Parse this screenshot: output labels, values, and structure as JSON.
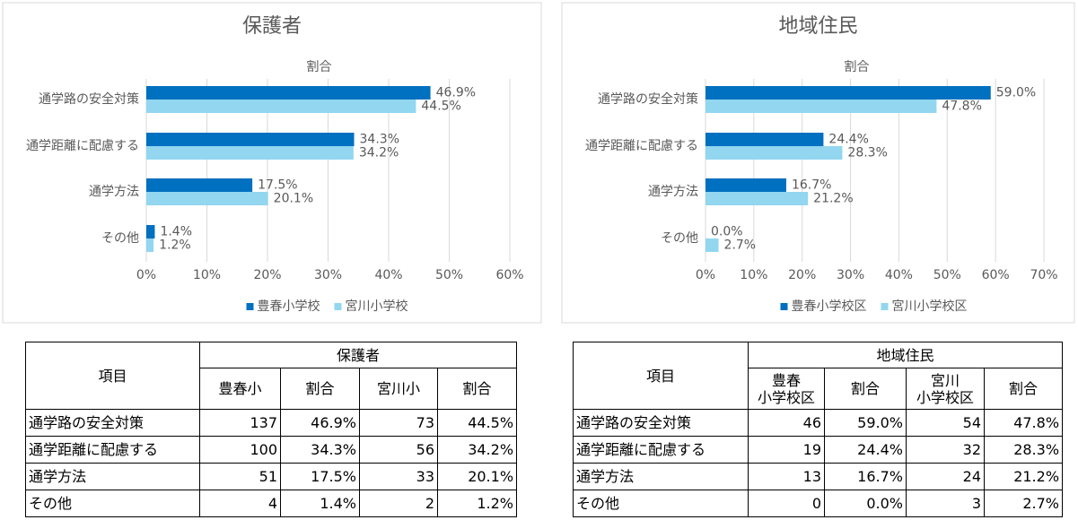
{
  "chart_data": [
    {
      "type": "bar",
      "orientation": "horizontal",
      "title": "保護者",
      "axis_label": "割合",
      "categories": [
        "通学路の安全対策",
        "通学距離に配慮する",
        "通学方法",
        "その他"
      ],
      "series": [
        {
          "name": "豊春小学校",
          "color": "#0070c0",
          "values": [
            46.9,
            34.3,
            17.5,
            1.4
          ],
          "value_labels": [
            "46.9%",
            "34.3%",
            "17.5%",
            "1.4%"
          ]
        },
        {
          "name": "宮川小学校",
          "color": "#92d6f0",
          "values": [
            44.5,
            34.2,
            20.1,
            1.2
          ],
          "value_labels": [
            "44.5%",
            "34.2%",
            "20.1%",
            "1.2%"
          ]
        }
      ],
      "xlim": [
        0,
        60
      ],
      "xticks": [
        {
          "value": 0,
          "label": "0%"
        },
        {
          "value": 10,
          "label": "10%"
        },
        {
          "value": 20,
          "label": "20%"
        },
        {
          "value": 30,
          "label": "30%"
        },
        {
          "value": 40,
          "label": "40%"
        },
        {
          "value": 50,
          "label": "50%"
        },
        {
          "value": 60,
          "label": "60%"
        }
      ],
      "grid": true,
      "legend": "bottom"
    },
    {
      "type": "bar",
      "orientation": "horizontal",
      "title": "地域住民",
      "axis_label": "割合",
      "categories": [
        "通学路の安全対策",
        "通学距離に配慮する",
        "通学方法",
        "その他"
      ],
      "series": [
        {
          "name": "豊春小学校区",
          "color": "#0070c0",
          "values": [
            59.0,
            24.4,
            16.7,
            0.0
          ],
          "value_labels": [
            "59.0%",
            "24.4%",
            "16.7%",
            "0.0%"
          ]
        },
        {
          "name": "宮川小学校区",
          "color": "#92d6f0",
          "values": [
            47.8,
            28.3,
            21.2,
            2.7
          ],
          "value_labels": [
            "47.8%",
            "28.3%",
            "21.2%",
            "2.7%"
          ]
        }
      ],
      "xlim": [
        0,
        70
      ],
      "xticks": [
        {
          "value": 0,
          "label": "0%"
        },
        {
          "value": 10,
          "label": "10%"
        },
        {
          "value": 20,
          "label": "20%"
        },
        {
          "value": 30,
          "label": "30%"
        },
        {
          "value": 40,
          "label": "40%"
        },
        {
          "value": 50,
          "label": "50%"
        },
        {
          "value": 60,
          "label": "60%"
        },
        {
          "value": 70,
          "label": "70%"
        }
      ],
      "grid": true,
      "legend": "bottom"
    }
  ],
  "tables": [
    {
      "item_header": "項目",
      "group": "保護者",
      "columns": [
        "豊春小",
        "割合",
        "宮川小",
        "割合"
      ],
      "rows": [
        [
          "通学路の安全対策",
          "137",
          "46.9%",
          "73",
          "44.5%"
        ],
        [
          "通学距離に配慮する",
          "100",
          "34.3%",
          "56",
          "34.2%"
        ],
        [
          "通学方法",
          "51",
          "17.5%",
          "33",
          "20.1%"
        ],
        [
          "その他",
          "4",
          "1.4%",
          "2",
          "1.2%"
        ]
      ]
    },
    {
      "item_header": "項目",
      "group": "地域住民",
      "columns": [
        "豊春\n小学校区",
        "割合",
        "宮川\n小学校区",
        "割合"
      ],
      "rows": [
        [
          "通学路の安全対策",
          "46",
          "59.0%",
          "54",
          "47.8%"
        ],
        [
          "通学距離に配慮する",
          "19",
          "24.4%",
          "32",
          "28.3%"
        ],
        [
          "通学方法",
          "13",
          "16.7%",
          "24",
          "21.2%"
        ],
        [
          "その他",
          "0",
          "0.0%",
          "3",
          "2.7%"
        ]
      ]
    }
  ]
}
